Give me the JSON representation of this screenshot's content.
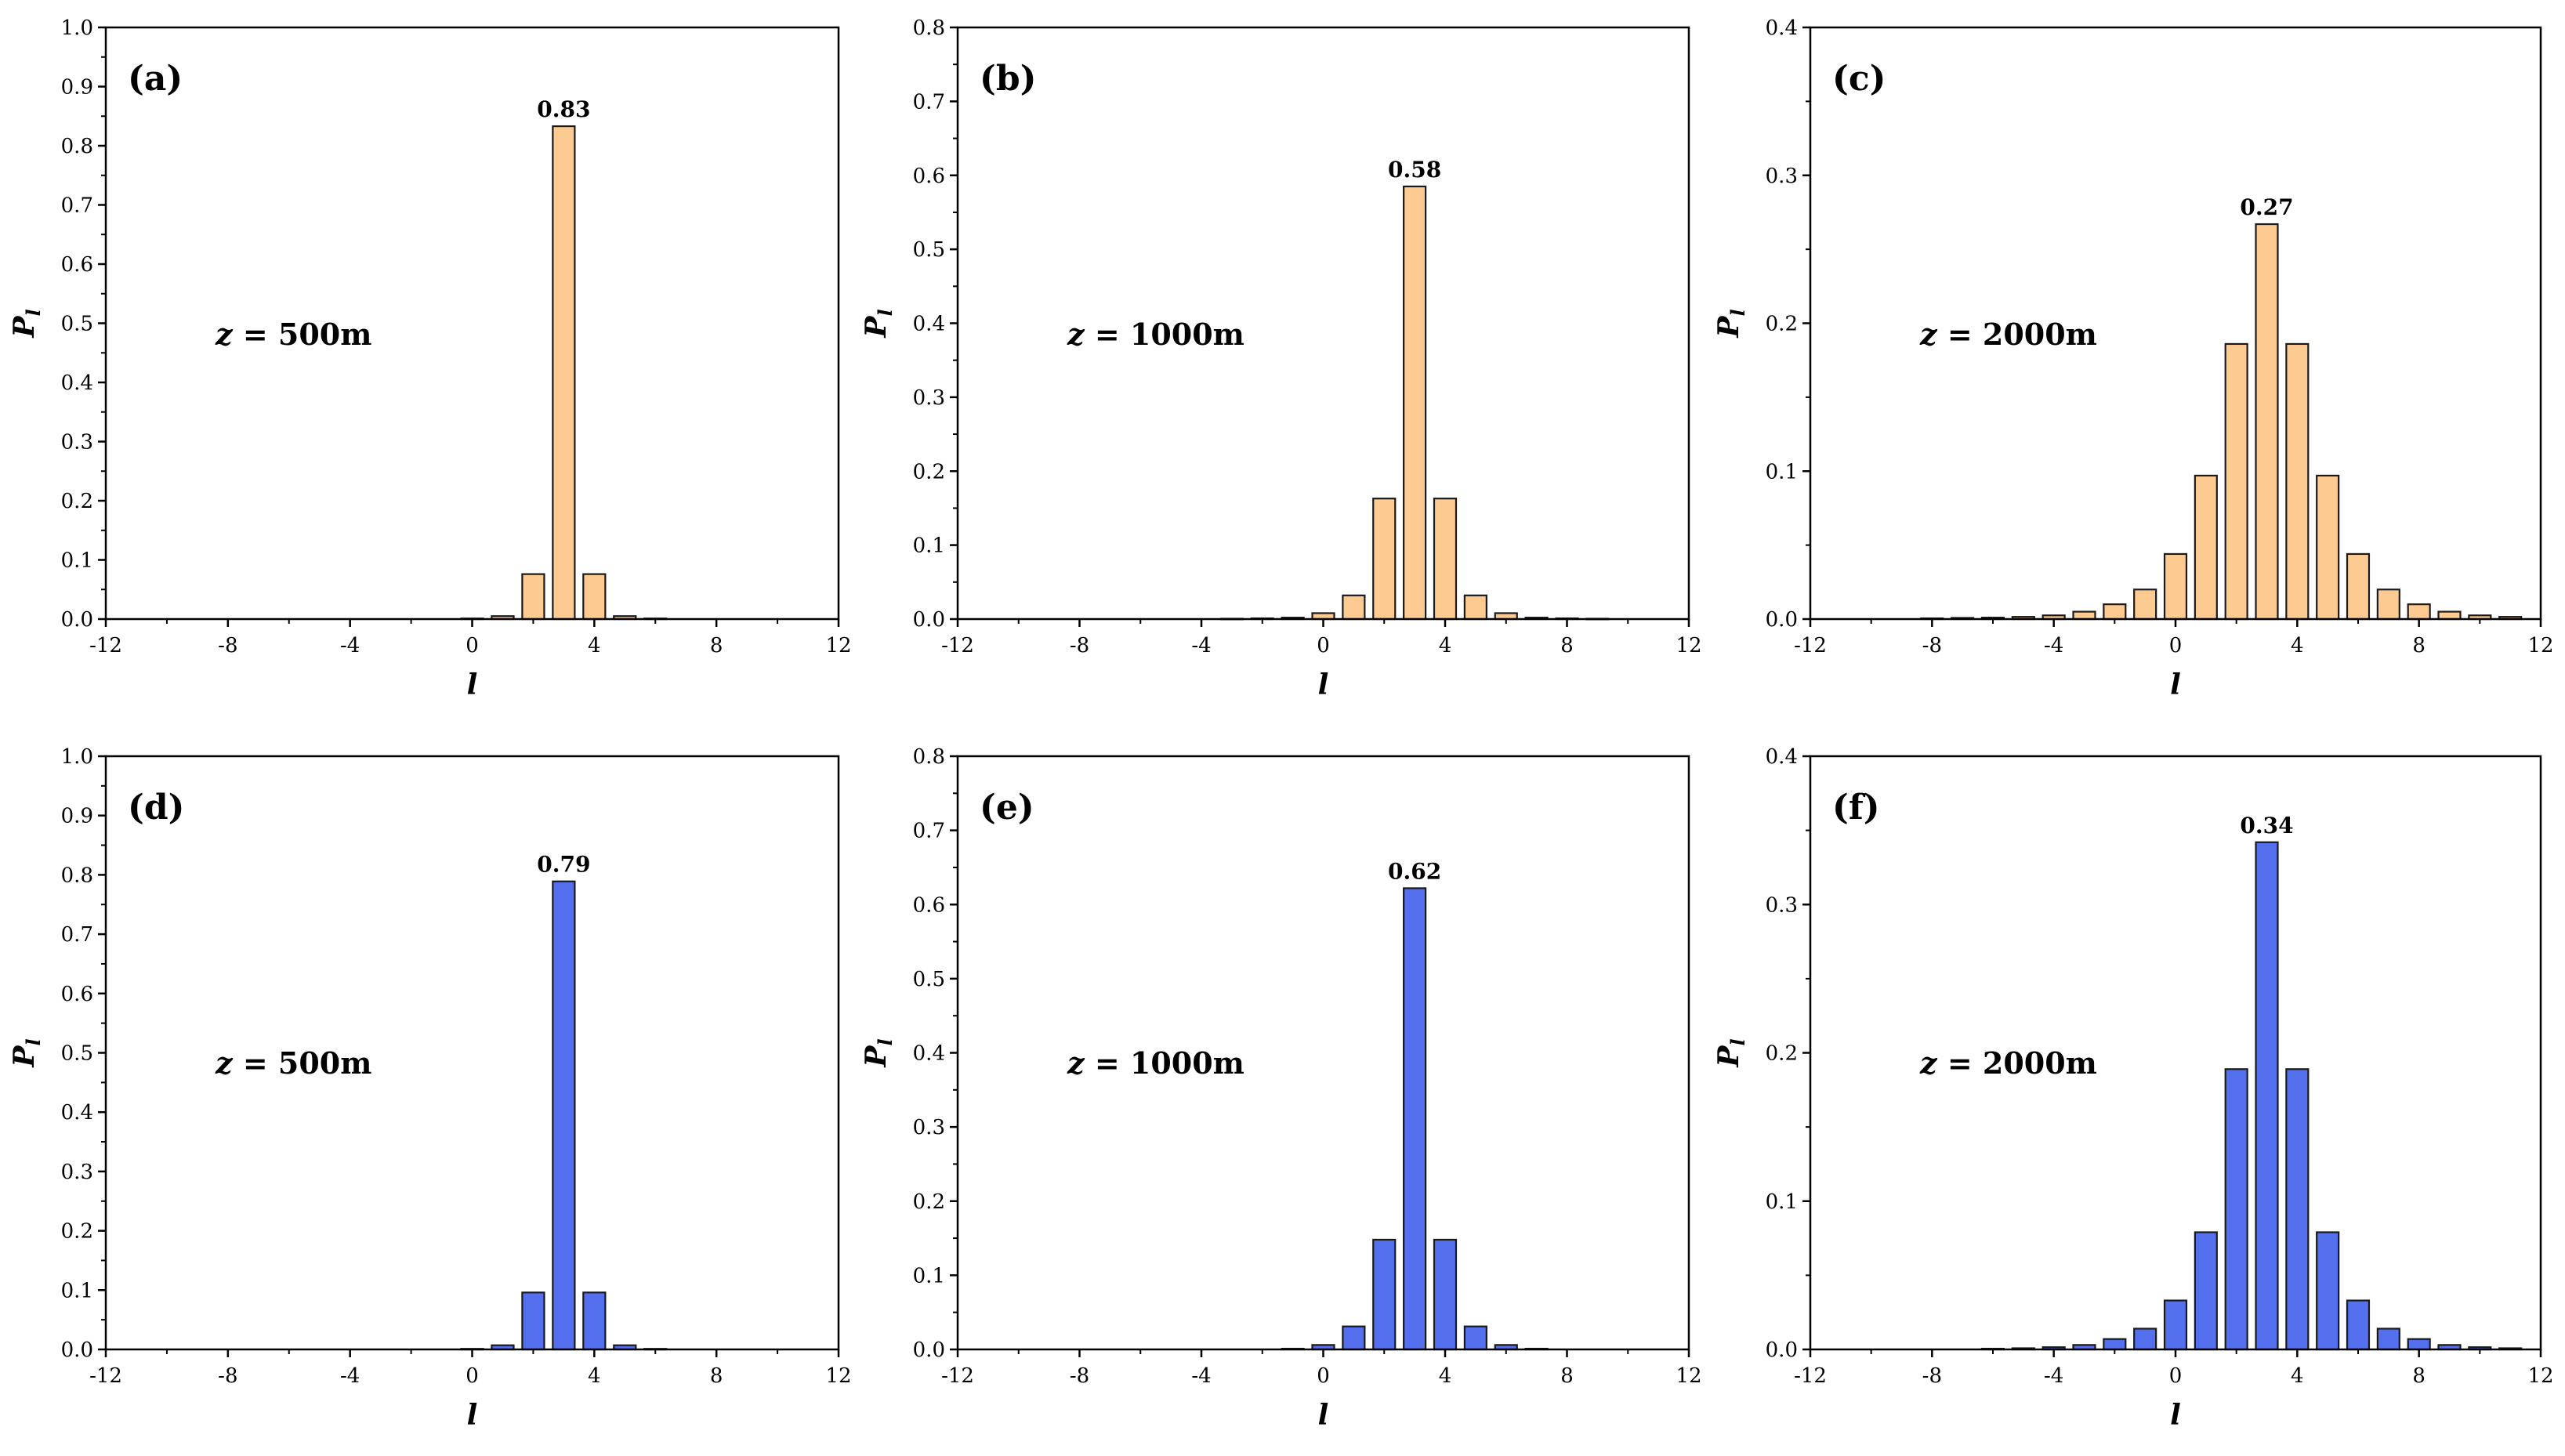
{
  "colors": {
    "orange": "#FDCB92",
    "blue": "#5570EE",
    "bar_edge": "#1a1a1a",
    "axis": "#000000"
  },
  "chart_data": [
    {
      "type": "bar",
      "panel_label": "(a)",
      "annotation": "z = 500m",
      "z_label_var": "z",
      "z_label_rest": "= 500m",
      "peak_label": "0.83",
      "color": "orange",
      "xlabel": "l",
      "ylabel_main": "P",
      "ylabel_sub": "l",
      "xlim": [
        -12,
        12
      ],
      "ylim": [
        0,
        1.0
      ],
      "x_ticks": [
        "-12",
        "-8",
        "-4",
        "0",
        "4",
        "8",
        "12"
      ],
      "y_ticks": [
        "0.0",
        "0.1",
        "0.2",
        "0.3",
        "0.4",
        "0.5",
        "0.6",
        "0.7",
        "0.8",
        "0.9",
        "1.0"
      ],
      "x": [
        -12,
        -11,
        -10,
        -9,
        -8,
        -7,
        -6,
        -5,
        -4,
        -3,
        -2,
        -1,
        0,
        1,
        2,
        3,
        4,
        5,
        6,
        7,
        8,
        9,
        10,
        11,
        12
      ],
      "values": [
        0,
        0,
        0,
        0,
        0,
        0,
        0,
        0,
        0,
        0,
        0,
        0,
        0.001,
        0.005,
        0.076,
        0.833,
        0.076,
        0.005,
        0.001,
        0,
        0,
        0,
        0,
        0,
        0
      ]
    },
    {
      "type": "bar",
      "panel_label": "(b)",
      "annotation": "z = 1000m",
      "z_label_var": "z",
      "z_label_rest": "= 1000m",
      "peak_label": "0.58",
      "color": "orange",
      "xlabel": "l",
      "ylabel_main": "P",
      "ylabel_sub": "l",
      "xlim": [
        -12,
        12
      ],
      "ylim": [
        0,
        0.8
      ],
      "x_ticks": [
        "-12",
        "-8",
        "-4",
        "0",
        "4",
        "8",
        "12"
      ],
      "y_ticks": [
        "0.0",
        "0.1",
        "0.2",
        "0.3",
        "0.4",
        "0.5",
        "0.6",
        "0.7",
        "0.8"
      ],
      "x": [
        -12,
        -11,
        -10,
        -9,
        -8,
        -7,
        -6,
        -5,
        -4,
        -3,
        -2,
        -1,
        0,
        1,
        2,
        3,
        4,
        5,
        6,
        7,
        8,
        9,
        10,
        11,
        12
      ],
      "values": [
        0,
        0,
        0,
        0,
        0,
        0,
        0,
        0,
        0,
        0.0005,
        0.001,
        0.002,
        0.008,
        0.032,
        0.163,
        0.585,
        0.163,
        0.032,
        0.008,
        0.002,
        0.001,
        0.0005,
        0,
        0,
        0
      ]
    },
    {
      "type": "bar",
      "panel_label": "(c)",
      "annotation": "z = 2000m",
      "z_label_var": "z",
      "z_label_rest": "= 2000m",
      "peak_label": "0.27",
      "color": "orange",
      "xlabel": "l",
      "ylabel_main": "P",
      "ylabel_sub": "l",
      "xlim": [
        -12,
        12
      ],
      "ylim": [
        0,
        0.4
      ],
      "x_ticks": [
        "-12",
        "-8",
        "-4",
        "0",
        "4",
        "8",
        "12"
      ],
      "y_ticks": [
        "0.0",
        "0.1",
        "0.2",
        "0.3",
        "0.4"
      ],
      "x": [
        -12,
        -11,
        -10,
        -9,
        -8,
        -7,
        -6,
        -5,
        -4,
        -3,
        -2,
        -1,
        0,
        1,
        2,
        3,
        4,
        5,
        6,
        7,
        8,
        9,
        10,
        11,
        12
      ],
      "values": [
        0,
        0,
        0,
        0,
        0.0005,
        0.0008,
        0.001,
        0.0015,
        0.0025,
        0.005,
        0.01,
        0.02,
        0.044,
        0.097,
        0.186,
        0.267,
        0.186,
        0.097,
        0.044,
        0.02,
        0.01,
        0.005,
        0.0025,
        0.0015,
        0
      ]
    },
    {
      "type": "bar",
      "panel_label": "(d)",
      "annotation": "z = 500m",
      "z_label_var": "z",
      "z_label_rest": "= 500m",
      "peak_label": "0.79",
      "color": "blue",
      "xlabel": "l",
      "ylabel_main": "P",
      "ylabel_sub": "l",
      "xlim": [
        -12,
        12
      ],
      "ylim": [
        0,
        1.0
      ],
      "x_ticks": [
        "-12",
        "-8",
        "-4",
        "0",
        "4",
        "8",
        "12"
      ],
      "y_ticks": [
        "0.0",
        "0.1",
        "0.2",
        "0.3",
        "0.4",
        "0.5",
        "0.6",
        "0.7",
        "0.8",
        "0.9",
        "1.0"
      ],
      "x": [
        -12,
        -11,
        -10,
        -9,
        -8,
        -7,
        -6,
        -5,
        -4,
        -3,
        -2,
        -1,
        0,
        1,
        2,
        3,
        4,
        5,
        6,
        7,
        8,
        9,
        10,
        11,
        12
      ],
      "values": [
        0,
        0,
        0,
        0,
        0,
        0,
        0,
        0,
        0,
        0,
        0,
        0,
        0.001,
        0.007,
        0.096,
        0.789,
        0.096,
        0.007,
        0.001,
        0,
        0,
        0,
        0,
        0,
        0
      ]
    },
    {
      "type": "bar",
      "panel_label": "(e)",
      "annotation": "z = 1000m",
      "z_label_var": "z",
      "z_label_rest": "= 1000m",
      "peak_label": "0.62",
      "color": "blue",
      "xlabel": "l",
      "ylabel_main": "P",
      "ylabel_sub": "l",
      "xlim": [
        -12,
        12
      ],
      "ylim": [
        0,
        0.8
      ],
      "x_ticks": [
        "-12",
        "-8",
        "-4",
        "0",
        "4",
        "8",
        "12"
      ],
      "y_ticks": [
        "0.0",
        "0.1",
        "0.2",
        "0.3",
        "0.4",
        "0.5",
        "0.6",
        "0.7",
        "0.8"
      ],
      "x": [
        -12,
        -11,
        -10,
        -9,
        -8,
        -7,
        -6,
        -5,
        -4,
        -3,
        -2,
        -1,
        0,
        1,
        2,
        3,
        4,
        5,
        6,
        7,
        8,
        9,
        10,
        11,
        12
      ],
      "values": [
        0,
        0,
        0,
        0,
        0,
        0,
        0,
        0,
        0,
        0,
        0,
        0.001,
        0.006,
        0.031,
        0.148,
        0.622,
        0.148,
        0.031,
        0.006,
        0.001,
        0,
        0,
        0,
        0,
        0
      ]
    },
    {
      "type": "bar",
      "panel_label": "(f)",
      "annotation": "z = 2000m",
      "z_label_var": "z",
      "z_label_rest": "= 2000m",
      "peak_label": "0.34",
      "color": "blue",
      "xlabel": "l",
      "ylabel_main": "P",
      "ylabel_sub": "l",
      "xlim": [
        -12,
        12
      ],
      "ylim": [
        0,
        0.4
      ],
      "x_ticks": [
        "-12",
        "-8",
        "-4",
        "0",
        "4",
        "8",
        "12"
      ],
      "y_ticks": [
        "0.0",
        "0.1",
        "0.2",
        "0.3",
        "0.4"
      ],
      "x": [
        -12,
        -11,
        -10,
        -9,
        -8,
        -7,
        -6,
        -5,
        -4,
        -3,
        -2,
        -1,
        0,
        1,
        2,
        3,
        4,
        5,
        6,
        7,
        8,
        9,
        10,
        11,
        12
      ],
      "values": [
        0,
        0,
        0,
        0,
        0,
        0,
        0.0005,
        0.0008,
        0.0015,
        0.003,
        0.007,
        0.014,
        0.033,
        0.079,
        0.189,
        0.342,
        0.189,
        0.079,
        0.033,
        0.014,
        0.007,
        0.003,
        0.0015,
        0.0008,
        0
      ]
    }
  ]
}
